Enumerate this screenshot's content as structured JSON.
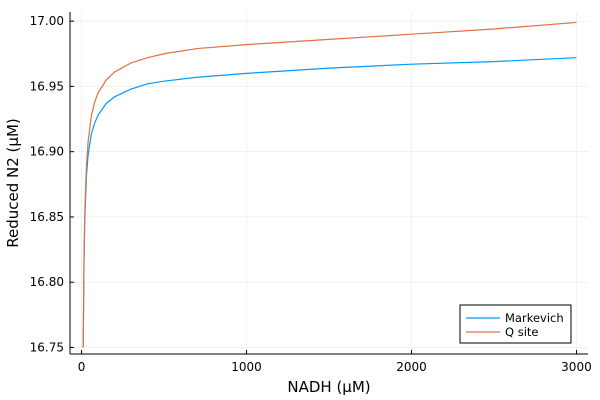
{
  "chart_data": {
    "type": "line",
    "title": "",
    "xlabel": "NADH (µM)",
    "ylabel": "Reduced N2 (µM)",
    "xlim": [
      -70,
      3070
    ],
    "ylim": [
      16.745,
      17.007
    ],
    "xticks": [
      0,
      1000,
      2000,
      3000
    ],
    "xtick_labels": [
      "0",
      "1000",
      "2000",
      "3000"
    ],
    "yticks": [
      16.75,
      16.8,
      16.85,
      16.9,
      16.95,
      17.0
    ],
    "ytick_labels": [
      "16.75",
      "16.80",
      "16.85",
      "16.90",
      "16.95",
      "17.00"
    ],
    "grid": true,
    "legend_position": "bottom-right",
    "series": [
      {
        "name": "Markevich",
        "color": "#009AFA",
        "x": [
          10,
          15,
          20,
          30,
          40,
          60,
          80,
          100,
          150,
          200,
          300,
          400,
          500,
          700,
          1000,
          1500,
          2000,
          2500,
          3000
        ],
        "y": [
          16.75,
          16.815,
          16.85,
          16.882,
          16.898,
          16.914,
          16.922,
          16.928,
          16.937,
          16.942,
          16.948,
          16.952,
          16.954,
          16.957,
          16.96,
          16.964,
          16.967,
          16.969,
          16.972
        ]
      },
      {
        "name": "Q site",
        "color": "#E26F46",
        "x": [
          10,
          15,
          20,
          30,
          40,
          60,
          80,
          100,
          150,
          200,
          300,
          400,
          500,
          700,
          1000,
          1500,
          2000,
          2500,
          3000
        ],
        "y": [
          16.75,
          16.82,
          16.855,
          16.89,
          16.908,
          16.928,
          16.938,
          16.945,
          16.955,
          16.961,
          16.968,
          16.972,
          16.975,
          16.979,
          16.982,
          16.986,
          16.99,
          16.994,
          16.999
        ]
      }
    ]
  }
}
